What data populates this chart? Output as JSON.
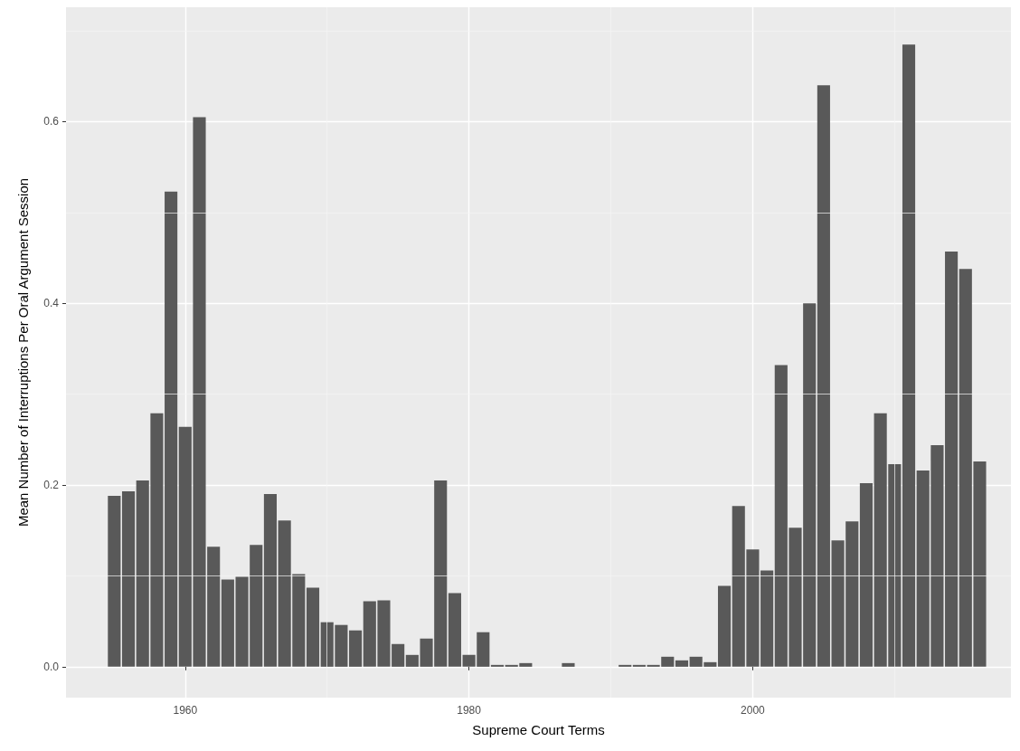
{
  "chart_data": {
    "type": "bar",
    "xlabel": "Supreme Court Terms",
    "ylabel": "Mean Number of Interruptions Per Oral Argument Session",
    "x": [
      1955,
      1956,
      1957,
      1958,
      1959,
      1960,
      1961,
      1962,
      1963,
      1964,
      1965,
      1966,
      1967,
      1968,
      1969,
      1970,
      1971,
      1972,
      1973,
      1974,
      1975,
      1976,
      1977,
      1978,
      1979,
      1980,
      1981,
      1982,
      1983,
      1984,
      1985,
      1986,
      1987,
      1988,
      1989,
      1990,
      1991,
      1992,
      1993,
      1994,
      1995,
      1996,
      1997,
      1998,
      1999,
      2000,
      2001,
      2002,
      2003,
      2004,
      2005,
      2006,
      2007,
      2008,
      2009,
      2010,
      2011,
      2012,
      2013,
      2014,
      2015,
      2016
    ],
    "values": [
      0.188,
      0.193,
      0.205,
      0.279,
      0.523,
      0.264,
      0.605,
      0.132,
      0.096,
      0.099,
      0.134,
      0.19,
      0.161,
      0.102,
      0.087,
      0.049,
      0.046,
      0.04,
      0.072,
      0.073,
      0.025,
      0.013,
      0.031,
      0.205,
      0.081,
      0.013,
      0.038,
      0.002,
      0.002,
      0.004,
      null,
      null,
      0.004,
      null,
      null,
      null,
      0.002,
      0.002,
      0.002,
      0.011,
      0.007,
      0.011,
      0.005,
      0.089,
      0.177,
      0.129,
      0.106,
      0.332,
      0.153,
      0.4,
      0.64,
      0.139,
      0.16,
      0.202,
      0.279,
      0.223,
      0.685,
      0.216,
      0.244,
      0.457,
      0.438,
      0.226
    ],
    "color": "#595959",
    "xlim": [
      1951.6,
      2018.2
    ],
    "xticks": [
      1960,
      1980,
      2000
    ],
    "ylim": [
      -0.034,
      0.726
    ],
    "yticks": [
      {
        "value": 0,
        "label": "0.0"
      },
      {
        "value": 0.2,
        "label": "0.2"
      },
      {
        "value": 0.4,
        "label": "0.4"
      },
      {
        "value": 0.6,
        "label": "0.6"
      }
    ],
    "grid": true
  }
}
